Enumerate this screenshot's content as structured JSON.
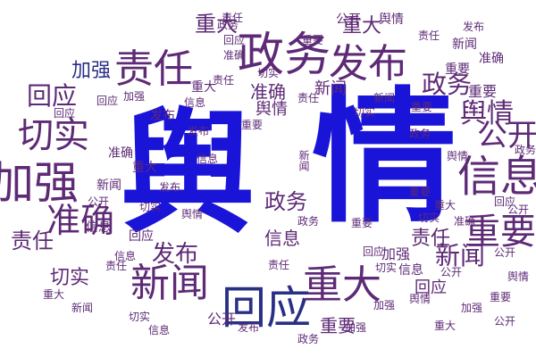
{
  "word_cloud": {
    "colors": {
      "blue": "#1a14d8",
      "purple": "#5e2a76",
      "navy": "#2a2f86"
    },
    "words": [
      {
        "text": "舆",
        "color": "blue"
      },
      {
        "text": "情",
        "color": "blue"
      },
      {
        "text": "政务",
        "color": "purple"
      },
      {
        "text": "发布",
        "color": "purple"
      },
      {
        "text": "责任",
        "color": "purple"
      },
      {
        "text": "信息",
        "color": "purple"
      },
      {
        "text": "加强",
        "color": "purple"
      },
      {
        "text": "切实",
        "color": "purple"
      },
      {
        "text": "准确",
        "color": "purple"
      },
      {
        "text": "回应",
        "color": "navy"
      },
      {
        "text": "新闻",
        "color": "purple"
      },
      {
        "text": "重大",
        "color": "purple"
      },
      {
        "text": "重要",
        "color": "purple"
      },
      {
        "text": "公开",
        "color": "purple"
      },
      {
        "text": "舆情",
        "color": "purple"
      },
      {
        "text": "政务",
        "color": "purple"
      },
      {
        "text": "回应",
        "color": "purple"
      },
      {
        "text": "新闻",
        "color": "purple"
      },
      {
        "text": "新闻",
        "color": "purple"
      },
      {
        "text": "重大",
        "color": "purple"
      },
      {
        "text": "加强",
        "color": "navy"
      },
      {
        "text": "责任",
        "color": "purple"
      },
      {
        "text": "发布",
        "color": "purple"
      },
      {
        "text": "切实",
        "color": "purple"
      },
      {
        "text": "回应",
        "color": "purple"
      },
      {
        "text": "信息",
        "color": "purple"
      },
      {
        "text": "准确",
        "color": "purple"
      },
      {
        "text": "重要",
        "color": "purple"
      },
      {
        "text": "政务",
        "color": "purple"
      },
      {
        "text": "信息",
        "color": "purple"
      },
      {
        "text": "回应",
        "color": "purple"
      },
      {
        "text": "舆情",
        "color": "purple"
      },
      {
        "text": "加强",
        "color": "purple"
      },
      {
        "text": "重大",
        "color": "purple"
      },
      {
        "text": "重要",
        "color": "purple"
      },
      {
        "text": "公开",
        "color": "purple"
      },
      {
        "text": "责任",
        "color": "purple"
      },
      {
        "text": "公开",
        "color": "purple"
      },
      {
        "text": "重大",
        "color": "purple"
      },
      {
        "text": "责任",
        "color": "purple"
      },
      {
        "text": "切实",
        "color": "purple"
      },
      {
        "text": "准确",
        "color": "purple"
      },
      {
        "text": "新闻",
        "color": "purple"
      },
      {
        "text": "准确",
        "color": "purple"
      },
      {
        "text": "公开",
        "color": "purple"
      },
      {
        "text": "政务",
        "color": "purple"
      },
      {
        "text": "重要",
        "color": "purple"
      },
      {
        "text": "舆情",
        "color": "purple"
      },
      {
        "text": "公开",
        "color": "purple"
      },
      {
        "text": "新闻",
        "color": "purple"
      },
      {
        "text": "舆情",
        "color": "purple"
      },
      {
        "text": "责任",
        "color": "purple"
      },
      {
        "text": "重要",
        "color": "purple"
      },
      {
        "text": "回应",
        "color": "purple"
      },
      {
        "text": "发布",
        "color": "purple"
      },
      {
        "text": "重大",
        "color": "purple"
      },
      {
        "text": "信息",
        "color": "purple"
      },
      {
        "text": "重要",
        "color": "purple"
      },
      {
        "text": "重大",
        "color": "purple"
      },
      {
        "text": "切实",
        "color": "purple"
      },
      {
        "text": "信息",
        "color": "purple"
      },
      {
        "text": "回应",
        "color": "purple"
      },
      {
        "text": "切实",
        "color": "purple"
      },
      {
        "text": "加强",
        "color": "purple"
      },
      {
        "text": "发布",
        "color": "purple"
      },
      {
        "text": "准确",
        "color": "purple"
      },
      {
        "text": "切实",
        "color": "purple"
      },
      {
        "text": "重要",
        "color": "purple"
      },
      {
        "text": "加强",
        "color": "purple"
      },
      {
        "text": "政务",
        "color": "purple"
      },
      {
        "text": "舆情",
        "color": "purple"
      },
      {
        "text": "公开",
        "color": "purple"
      },
      {
        "text": "责任",
        "color": "purple"
      },
      {
        "text": "发布",
        "color": "purple"
      },
      {
        "text": "新闻",
        "color": "purple"
      },
      {
        "text": "政务",
        "color": "purple"
      },
      {
        "text": "回应",
        "color": "purple"
      },
      {
        "text": "信息",
        "color": "purple"
      },
      {
        "text": "舆情",
        "color": "purple"
      },
      {
        "text": "重要",
        "color": "purple"
      },
      {
        "text": "新闻",
        "color": "purple"
      },
      {
        "text": "责任",
        "color": "purple"
      },
      {
        "text": "回应",
        "color": "purple"
      },
      {
        "text": "加强",
        "color": "purple"
      },
      {
        "text": "重大",
        "color": "purple"
      },
      {
        "text": "公开",
        "color": "purple"
      },
      {
        "text": "切实",
        "color": "purple"
      },
      {
        "text": "准确",
        "color": "purple"
      },
      {
        "text": "信息",
        "color": "purple"
      },
      {
        "text": "政务",
        "color": "purple"
      },
      {
        "text": "发布",
        "color": "purple"
      },
      {
        "text": "责任",
        "color": "purple"
      },
      {
        "text": "重要",
        "color": "purple"
      },
      {
        "text": "回应",
        "color": "purple"
      },
      {
        "text": "新闻",
        "color": "purple"
      },
      {
        "text": "公开",
        "color": "purple"
      },
      {
        "text": "加强",
        "color": "purple"
      },
      {
        "text": "重大",
        "color": "purple"
      },
      {
        "text": "切实",
        "color": "purple"
      },
      {
        "text": "信息",
        "color": "purple"
      },
      {
        "text": "责任",
        "color": "purple"
      },
      {
        "text": "舆情",
        "color": "purple"
      },
      {
        "text": "政务",
        "color": "purple"
      },
      {
        "text": "重要",
        "color": "purple"
      },
      {
        "text": "发布",
        "color": "purple"
      }
    ]
  }
}
